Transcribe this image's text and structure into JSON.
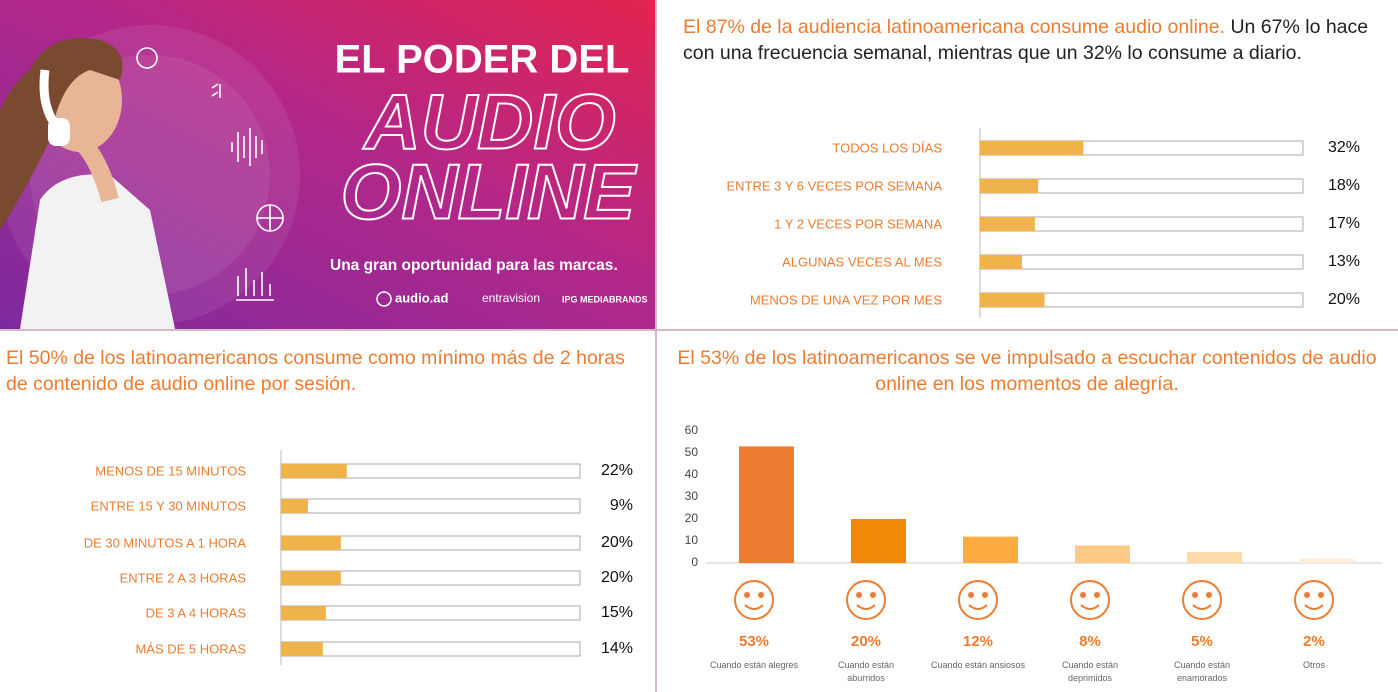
{
  "banner": {
    "title_line1": "EL PODER DEL",
    "title_line2": "AUDIO",
    "title_line3": "ONLINE",
    "tagline": "Una gran oportunidad para las marcas.",
    "logos": [
      "audio.ad",
      "entravision",
      "IPG MEDIABRANDS"
    ]
  },
  "chart_data": [
    {
      "type": "bar",
      "orientation": "horizontal",
      "title": "El 87% de la audiencia latinoamericana consume audio online.",
      "subtitle": "Un 67% lo hace con una frecuencia semanal, mientras que un 32% lo consume a diario.",
      "categories": [
        "TODOS LOS DÍAS",
        "ENTRE 3 Y 6 VECES POR SEMANA",
        "1 Y 2 VECES POR SEMANA",
        "ALGUNAS VECES AL MES",
        "MENOS DE UNA VEZ POR MES"
      ],
      "values": [
        32,
        18,
        17,
        13,
        20
      ],
      "value_labels": [
        "32%",
        "18%",
        "17%",
        "13%",
        "20%"
      ],
      "color": "#f0b24b",
      "xlim": [
        0,
        100
      ]
    },
    {
      "type": "bar",
      "orientation": "horizontal",
      "title": "El 50% de los latinoamericanos consume como mínimo más de 2 horas de contenido de audio online por sesión.",
      "categories": [
        "MENOS DE 15 MINUTOS",
        "ENTRE 15 Y 30 MINUTOS",
        "DE 30 MINUTOS A 1 HORA",
        "ENTRE 2 A 3 HORAS",
        "DE 3 A 4 HORAS",
        "MÁS DE 5 HORAS"
      ],
      "values": [
        22,
        9,
        20,
        20,
        15,
        14
      ],
      "value_labels": [
        "22%",
        "9%",
        "20%",
        "20%",
        "15%",
        "14%"
      ],
      "color": "#f0b24b",
      "xlim": [
        0,
        100
      ]
    },
    {
      "type": "bar",
      "orientation": "vertical",
      "title": "El 53% de los latinoamericanos se ve impulsado a escuchar contenidos de audio online en los momentos de alegría.",
      "categories": [
        "Cuando están alegres",
        "Cuando están aburridos",
        "Cuando están ansiosos",
        "Cuando están deprimidos",
        "Cuando están enamorados",
        "Otros"
      ],
      "values": [
        53,
        20,
        12,
        8,
        5,
        2
      ],
      "value_labels": [
        "53%",
        "20%",
        "12%",
        "8%",
        "5%",
        "2%"
      ],
      "colors": [
        "#ed7d31",
        "#f08a05",
        "#fbab3f",
        "#fdc987",
        "#fddcac",
        "#fdeedc"
      ],
      "ylim": [
        0,
        60
      ],
      "yticks": [
        0,
        10,
        20,
        30,
        40,
        50,
        60
      ],
      "grid": false
    }
  ]
}
